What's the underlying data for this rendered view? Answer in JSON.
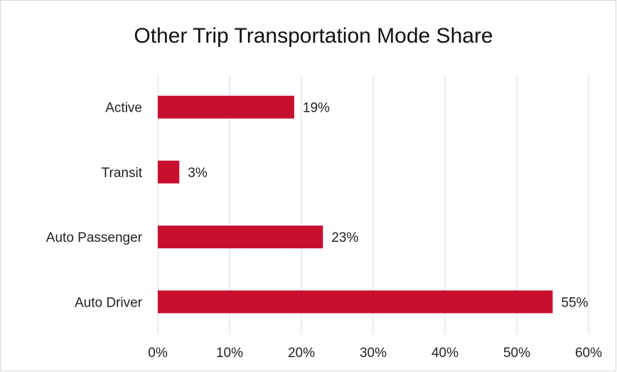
{
  "chart_data": {
    "type": "bar",
    "orientation": "horizontal",
    "title": "Other Trip Transportation Mode Share",
    "categories": [
      "Active",
      "Transit",
      "Auto Passenger",
      "Auto Driver"
    ],
    "values": [
      19,
      3,
      23,
      55
    ],
    "value_labels": [
      "19%",
      "3%",
      "23%",
      "55%"
    ],
    "color": "#c8102e",
    "xlim": [
      0,
      60
    ],
    "xticks": [
      {
        "value": 0,
        "label": "0%"
      },
      {
        "value": 10,
        "label": "10%"
      },
      {
        "value": 20,
        "label": "20%"
      },
      {
        "value": 30,
        "label": "30%"
      },
      {
        "value": 40,
        "label": "40%"
      },
      {
        "value": 50,
        "label": "50%"
      },
      {
        "value": 60,
        "label": "60%"
      }
    ],
    "grid": true
  }
}
